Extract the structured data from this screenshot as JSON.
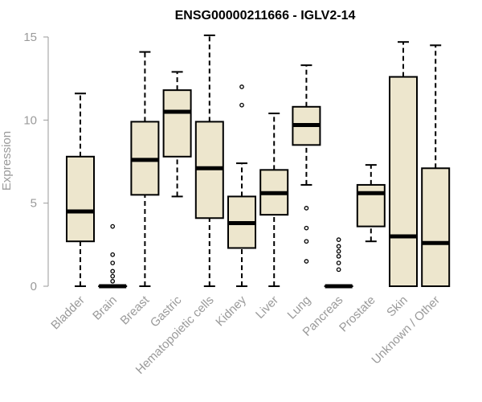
{
  "chart_data": {
    "type": "boxplot",
    "title": "ENSG00000211666 - IGLV2-14",
    "xlabel": "",
    "ylabel": "Expression",
    "ylim": [
      0,
      15
    ],
    "yticks": [
      0,
      5,
      10,
      15
    ],
    "box_fill": "#ede6cd",
    "box_stroke": "#000000",
    "axis_color": "#9a9a9a",
    "categories": [
      "Bladder",
      "Brain",
      "Breast",
      "Gastric",
      "Hematopoietic cells",
      "Kidney",
      "Liver",
      "Lung",
      "Pancreas",
      "Prostate",
      "Skin",
      "Unknown / Other"
    ],
    "boxes": [
      {
        "name": "Bladder",
        "min": 0,
        "q1": 2.7,
        "median": 4.5,
        "q3": 7.8,
        "max": 11.6,
        "outliers": []
      },
      {
        "name": "Brain",
        "min": 0,
        "q1": 0,
        "median": 0,
        "q3": 0,
        "max": 0,
        "outliers": [
          3.6,
          1.9,
          1.4,
          0.9,
          0.6,
          0.3
        ]
      },
      {
        "name": "Breast",
        "min": 0,
        "q1": 5.5,
        "median": 7.6,
        "q3": 9.9,
        "max": 14.1,
        "outliers": []
      },
      {
        "name": "Gastric",
        "min": 5.4,
        "q1": 7.8,
        "median": 10.5,
        "q3": 11.8,
        "max": 12.9,
        "outliers": []
      },
      {
        "name": "Hematopoietic cells",
        "min": 0,
        "q1": 4.1,
        "median": 7.1,
        "q3": 9.9,
        "max": 15.1,
        "outliers": []
      },
      {
        "name": "Kidney",
        "min": 0,
        "q1": 2.3,
        "median": 3.8,
        "q3": 5.4,
        "max": 7.4,
        "outliers": [
          10.9,
          12.0
        ]
      },
      {
        "name": "Liver",
        "min": 0,
        "q1": 4.3,
        "median": 5.6,
        "q3": 7.0,
        "max": 10.4,
        "outliers": []
      },
      {
        "name": "Lung",
        "min": 6.1,
        "q1": 8.5,
        "median": 9.7,
        "q3": 10.8,
        "max": 13.3,
        "outliers": [
          4.7,
          3.5,
          2.7,
          1.5
        ]
      },
      {
        "name": "Pancreas",
        "min": 0,
        "q1": 0,
        "median": 0,
        "q3": 0,
        "max": 0,
        "outliers": [
          2.8,
          2.4,
          2.1,
          1.8,
          1.4,
          1.0
        ]
      },
      {
        "name": "Prostate",
        "min": 2.7,
        "q1": 3.6,
        "median": 5.6,
        "q3": 6.1,
        "max": 7.3,
        "outliers": []
      },
      {
        "name": "Skin",
        "min": 0,
        "q1": 0,
        "median": 3.0,
        "q3": 12.6,
        "max": 14.7,
        "outliers": []
      },
      {
        "name": "Unknown / Other",
        "min": 0,
        "q1": 0,
        "median": 2.6,
        "q3": 7.1,
        "max": 14.5,
        "outliers": []
      }
    ]
  }
}
